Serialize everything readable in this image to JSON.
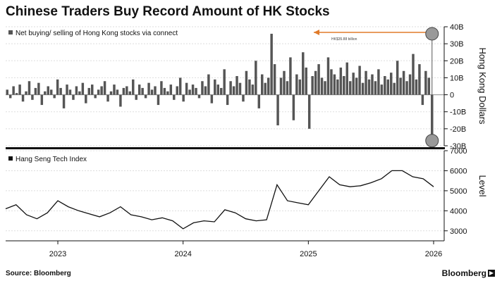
{
  "title": "Chinese Traders Buy Record Amount of HK Stocks",
  "source": "Source: Bloomberg",
  "brand": "Bloomberg",
  "chart_data": [
    {
      "type": "bar",
      "legend": "Net buying/ selling of Hong Kong stocks via connect",
      "ylabel": "Hong Kong Dollars",
      "ylim": [
        -30,
        40
      ],
      "yticks": [
        "40B",
        "30B",
        "20B",
        "10B",
        "0",
        "-10B",
        "-20B",
        "-30B"
      ],
      "ytick_values": [
        40,
        30,
        20,
        10,
        0,
        -10,
        -20,
        -30
      ],
      "annotation": "HK$35.88 billion",
      "record_value": 35.88,
      "x_start": "2022-08",
      "x_end": "2026-01",
      "color": "#555555",
      "values": [
        3,
        -2,
        5,
        1,
        6,
        -4,
        2,
        8,
        -3,
        4,
        7,
        -6,
        2,
        5,
        3,
        -2,
        9,
        4,
        -8,
        6,
        3,
        -3,
        5,
        2,
        7,
        -5,
        4,
        6,
        -2,
        3,
        5,
        8,
        -4,
        2,
        6,
        3,
        -7,
        4,
        5,
        2,
        9,
        -3,
        6,
        4,
        -2,
        7,
        3,
        5,
        -6,
        8,
        4,
        2,
        6,
        -3,
        5,
        10,
        -4,
        7,
        3,
        6,
        4,
        -2,
        8,
        5,
        12,
        -5,
        9,
        6,
        4,
        15,
        -6,
        8,
        5,
        11,
        7,
        -4,
        14,
        9,
        6,
        20,
        -8,
        12,
        7,
        10,
        35.88,
        18,
        -18,
        10,
        14,
        8,
        22,
        -15,
        12,
        9,
        25,
        16,
        -20,
        11,
        14,
        18,
        10,
        8,
        22,
        15,
        12,
        9,
        16,
        11,
        19,
        8,
        13,
        10,
        17,
        7,
        14,
        9,
        12,
        8,
        15,
        6,
        11,
        9,
        13,
        7,
        20,
        10,
        14,
        8,
        12,
        24,
        9,
        18,
        -6,
        14,
        10,
        -24
      ]
    },
    {
      "type": "line",
      "legend": "Hang Seng Tech Index",
      "ylabel": "Level",
      "ylim": [
        2500,
        7000
      ],
      "yticks": [
        "7000",
        "6000",
        "5000",
        "4000",
        "3000"
      ],
      "ytick_values": [
        7000,
        6000,
        5000,
        4000,
        3000
      ],
      "x": [
        "2022-08",
        "2022-09",
        "2022-10",
        "2022-11",
        "2022-12",
        "2023-01",
        "2023-02",
        "2023-03",
        "2023-04",
        "2023-05",
        "2023-06",
        "2023-07",
        "2023-08",
        "2023-09",
        "2023-10",
        "2023-11",
        "2023-12",
        "2024-01",
        "2024-02",
        "2024-03",
        "2024-04",
        "2024-05",
        "2024-06",
        "2024-07",
        "2024-08",
        "2024-09",
        "2024-10",
        "2024-11",
        "2024-12",
        "2025-01",
        "2025-02",
        "2025-03",
        "2025-04",
        "2025-05",
        "2025-06",
        "2025-07",
        "2025-08",
        "2025-09",
        "2025-10",
        "2025-11",
        "2025-12",
        "2026-01"
      ],
      "values": [
        4100,
        4300,
        3800,
        3600,
        3900,
        4500,
        4200,
        4000,
        3850,
        3700,
        3900,
        4200,
        3800,
        3700,
        3550,
        3650,
        3500,
        3100,
        3400,
        3500,
        3450,
        4050,
        3900,
        3600,
        3500,
        3550,
        5300,
        4500,
        4400,
        4300,
        5000,
        5700,
        5300,
        5200,
        5250,
        5400,
        5600,
        6000,
        6000,
        5700,
        5600,
        5200
      ]
    }
  ],
  "xaxis": {
    "ticks": [
      "2023",
      "2024",
      "2025",
      "2026"
    ]
  }
}
